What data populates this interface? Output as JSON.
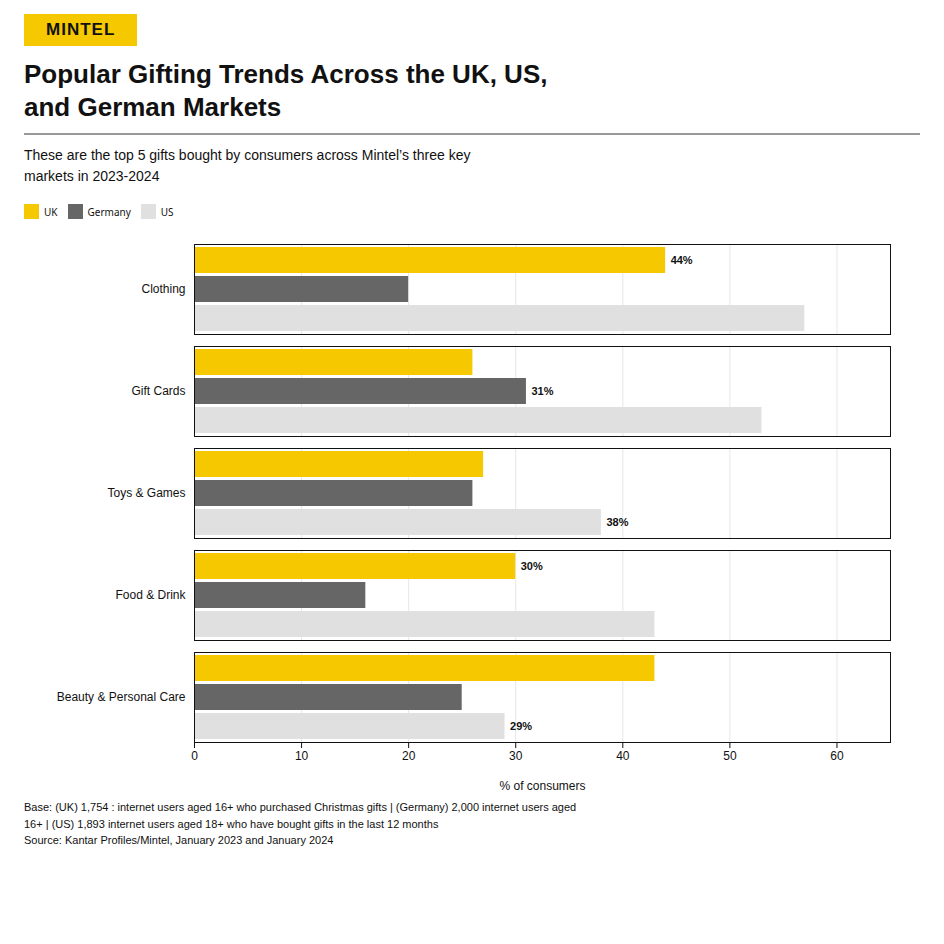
{
  "chart_data": {
    "type": "bar",
    "orientation": "horizontal",
    "logo": "MINTEL",
    "title": "Popular Gifting Trends Across the UK, US,\nand German Markets",
    "subtitle": "These are the top 5 gifts bought by consumers across Mintel’s three key\nmarkets in 2023-2024",
    "footnote": "Base: (UK) 1,754 : internet users aged 16+ who purchased Christmas gifts | (Germany) 2,000 internet users aged\n16+ | (US) 1,893 internet users aged 18+ who have bought gifts in the last 12 months\nSource: Kantar Profiles/Mintel, January 2023 and January 2024",
    "categories": [
      "Clothing",
      "Gift Cards",
      "Toys & Games",
      "Food & Drink",
      "Beauty & Personal Care"
    ],
    "series": [
      {
        "name": "UK",
        "color": "#f5c800",
        "values": [
          44,
          26,
          27,
          30,
          43
        ],
        "value_labels": [
          "44%",
          null,
          null,
          "30%",
          null
        ]
      },
      {
        "name": "Germany",
        "color": "#666666",
        "values": [
          20,
          31,
          26,
          16,
          25
        ],
        "value_labels": [
          null,
          "31%",
          null,
          null,
          null
        ]
      },
      {
        "name": "US",
        "color": "#e0e0e0",
        "values": [
          57,
          53,
          38,
          43,
          29
        ],
        "value_labels": [
          null,
          null,
          "38%",
          null,
          "29%"
        ]
      }
    ],
    "xlabel": "% of consumers",
    "xlim": [
      0,
      65
    ],
    "xticks": [
      0,
      10,
      20,
      30,
      40,
      50,
      60
    ],
    "grid": true,
    "legend": "top",
    "data_labels": true
  }
}
